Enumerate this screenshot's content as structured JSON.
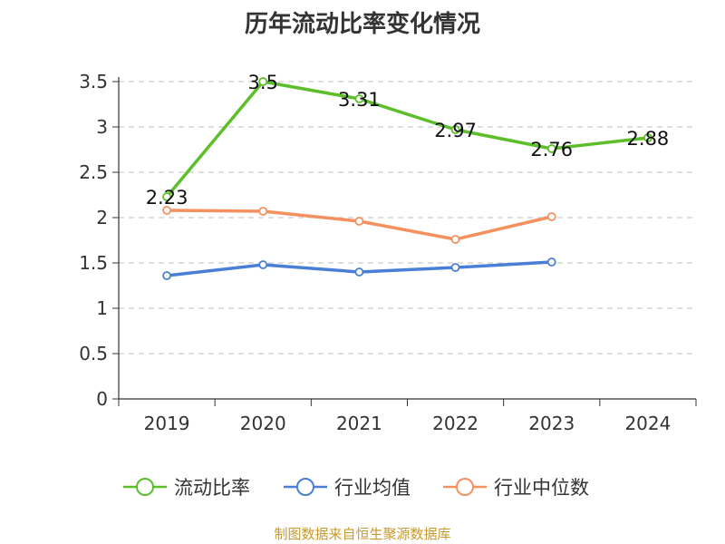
{
  "title": "历年流动比率变化情况",
  "source": "制图数据来自恒生聚源数据库",
  "chart_data": {
    "type": "line",
    "title": "历年流动比率变化情况",
    "xlabel": "",
    "ylabel": "",
    "categories": [
      "2019",
      "2020",
      "2021",
      "2022",
      "2023",
      "2024"
    ],
    "ylim": [
      0,
      3.5
    ],
    "yticks": [
      0,
      0.5,
      1,
      1.5,
      2,
      2.5,
      3,
      3.5
    ],
    "ytick_labels": [
      "0",
      "0.5",
      "1",
      "1.5",
      "2",
      "2.5",
      "3",
      "3.5"
    ],
    "grid": "horizontal dashed",
    "legend_position": "bottom",
    "series": [
      {
        "name": "流动比率",
        "color": "#5cbf2a",
        "values": [
          2.23,
          3.5,
          3.31,
          2.97,
          2.76,
          2.88
        ],
        "show_labels": true,
        "labels": [
          "2.23",
          "3.5",
          "3.31",
          "2.97",
          "2.76",
          "2.88"
        ]
      },
      {
        "name": "行业均值",
        "color": "#4a7fd8",
        "values": [
          1.36,
          1.48,
          1.4,
          1.45,
          1.51,
          null
        ],
        "show_labels": false
      },
      {
        "name": "行业中位数",
        "color": "#f4915e",
        "values": [
          2.08,
          2.07,
          1.96,
          1.76,
          2.01,
          null
        ],
        "show_labels": false
      }
    ]
  }
}
